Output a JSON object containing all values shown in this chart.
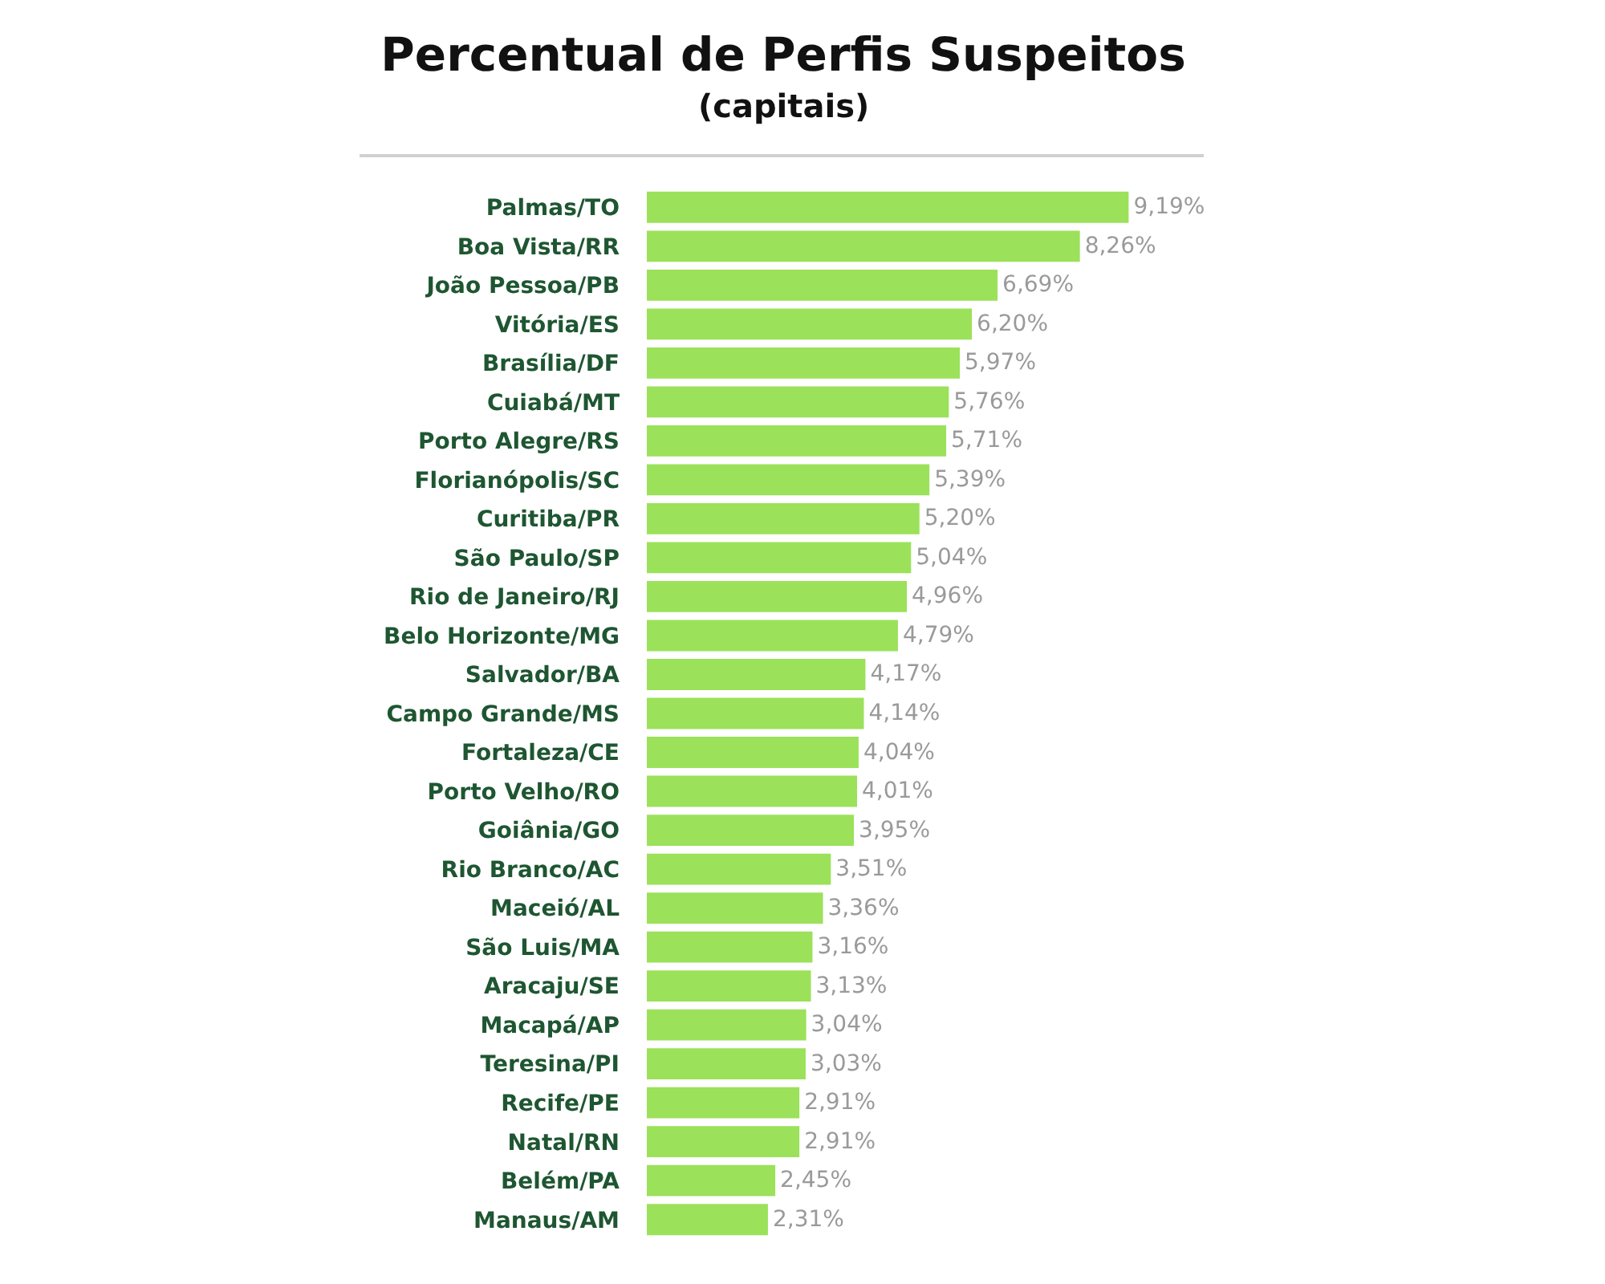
{
  "chart_data": {
    "type": "bar",
    "orientation": "horizontal",
    "title": "Percentual de Perfis Suspeitos",
    "subtitle": "(capitais)",
    "categories": [
      "Palmas/TO",
      "Boa Vista/RR",
      "João Pessoa/PB",
      "Vitória/ES",
      "Brasília/DF",
      "Cuiabá/MT",
      "Porto Alegre/RS",
      "Florianópolis/SC",
      "Curitiba/PR",
      "São Paulo/SP",
      "Rio de Janeiro/RJ",
      "Belo Horizonte/MG",
      "Salvador/BA",
      "Campo Grande/MS",
      "Fortaleza/CE",
      "Porto Velho/RO",
      "Goiânia/GO",
      "Rio Branco/AC",
      "Maceió/AL",
      "São Luis/MA",
      "Aracaju/SE",
      "Macapá/AP",
      "Teresina/PI",
      "Recife/PE",
      "Natal/RN",
      "Belém/PA",
      "Manaus/AM"
    ],
    "values": [
      9.19,
      8.26,
      6.69,
      6.2,
      5.97,
      5.76,
      5.71,
      5.39,
      5.2,
      5.04,
      4.96,
      4.79,
      4.17,
      4.14,
      4.04,
      4.01,
      3.95,
      3.51,
      3.36,
      3.16,
      3.13,
      3.04,
      3.03,
      2.91,
      2.91,
      2.45,
      2.31
    ],
    "value_labels": [
      "9,19%",
      "8,26%",
      "6,69%",
      "6,20%",
      "5,97%",
      "5,76%",
      "5,71%",
      "5,39%",
      "5,20%",
      "5,04%",
      "4,96%",
      "4,79%",
      "4,17%",
      "4,14%",
      "4,04%",
      "4,01%",
      "3,95%",
      "3,51%",
      "3,36%",
      "3,16%",
      "3,13%",
      "3,04%",
      "3,03%",
      "2,91%",
      "2,91%",
      "2,45%",
      "2,31%"
    ],
    "color": "#9be15a",
    "tick_labels": "y"
  }
}
